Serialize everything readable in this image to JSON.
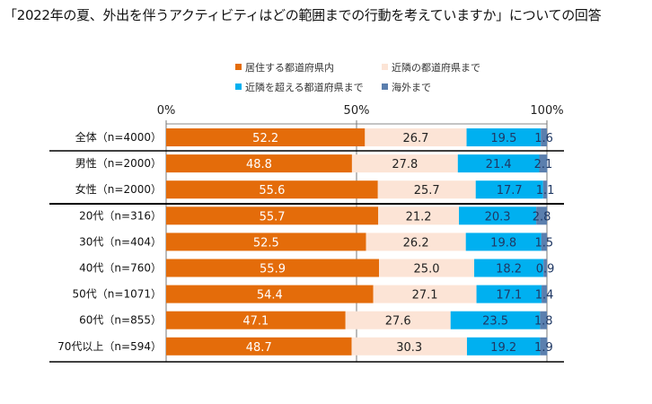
{
  "chart_data": {
    "type": "bar",
    "stacked": true,
    "orientation": "horizontal",
    "title": "「2022年の夏、外出を伴うアクティビティはどの範囲までの行動を考えていますか」についての回答",
    "xlim": [
      0,
      100
    ],
    "x_ticks": [
      "0%",
      "50%",
      "100%"
    ],
    "legend_position": "top",
    "grid": false,
    "categories": [
      "全体（n=4000）",
      "男性（n=2000）",
      "女性（n=2000）",
      "20代（n=316）",
      "30代（n=404）",
      "40代（n=760）",
      "50代（n=1071）",
      "60代（n=855）",
      "70代以上（n=594）"
    ],
    "series": [
      {
        "name": "居住する都道府県内",
        "color": "#E46C0A",
        "label_color": "#ffffff",
        "values": [
          52.2,
          48.8,
          55.6,
          55.7,
          52.5,
          55.9,
          54.4,
          47.1,
          48.7
        ]
      },
      {
        "name": "近隣の都道府県まで",
        "color": "#FCE4D6",
        "label_color": "#222222",
        "values": [
          26.7,
          27.8,
          25.7,
          21.2,
          26.2,
          25.0,
          27.1,
          27.6,
          30.3
        ]
      },
      {
        "name": "近隣を超える都道府県まで",
        "color": "#00B0F0",
        "label_color": "#1F3864",
        "values": [
          19.5,
          21.4,
          17.7,
          20.3,
          19.8,
          18.2,
          17.1,
          23.5,
          19.2
        ]
      },
      {
        "name": "海外まで",
        "color": "#5B7FAE",
        "label_color": "#1F3864",
        "values": [
          1.6,
          2.1,
          1.1,
          2.8,
          1.5,
          0.9,
          1.4,
          1.8,
          1.9
        ]
      }
    ]
  }
}
